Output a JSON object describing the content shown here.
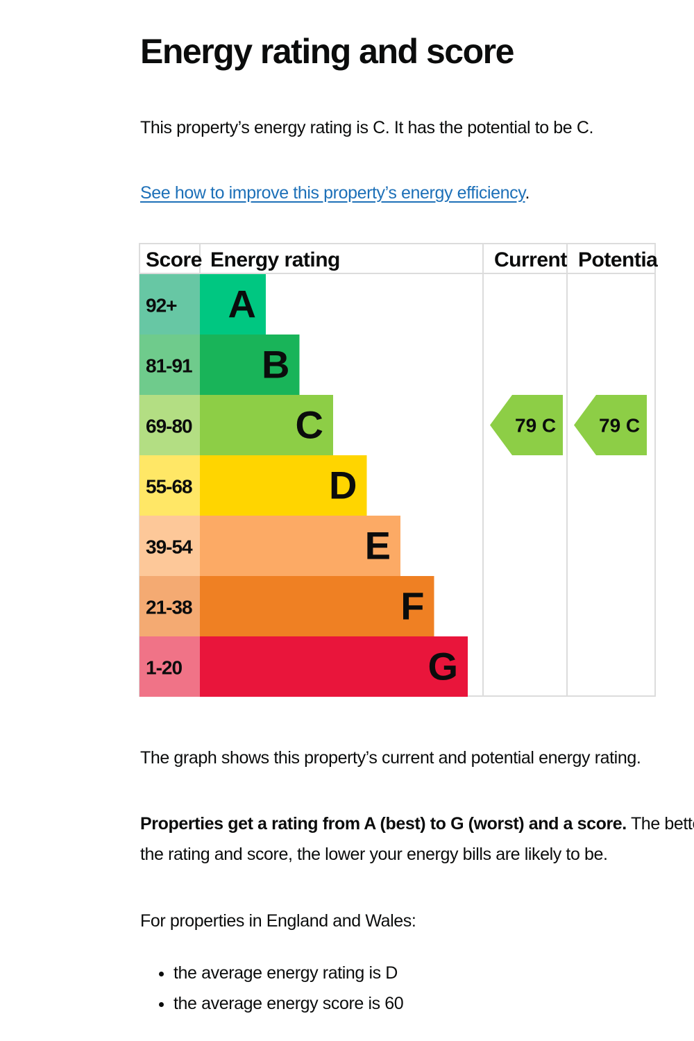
{
  "heading": "Energy rating and score",
  "summary": "This property’s energy rating is C. It has the potential to be C.",
  "improve_link": "See how to improve this property’s energy efficiency",
  "improve_link_suffix": ".",
  "chart_data": {
    "type": "bar",
    "columns": {
      "score": "Score",
      "rating": "Energy rating",
      "current": "Current",
      "potential": "Potential"
    },
    "bands": [
      {
        "letter": "A",
        "range": "92+",
        "color": "#00c781",
        "score_color": "#67c7a4"
      },
      {
        "letter": "B",
        "range": "81-91",
        "color": "#19b459",
        "score_color": "#6fcb8c"
      },
      {
        "letter": "C",
        "range": "69-80",
        "color": "#8dce46",
        "score_color": "#b3de83"
      },
      {
        "letter": "D",
        "range": "55-68",
        "color": "#ffd500",
        "score_color": "#ffe766"
      },
      {
        "letter": "E",
        "range": "39-54",
        "color": "#fcaa65",
        "score_color": "#fdc899"
      },
      {
        "letter": "F",
        "range": "21-38",
        "color": "#ef8023",
        "score_color": "#f4aa72"
      },
      {
        "letter": "G",
        "range": "1-20",
        "color": "#e9153b",
        "score_color": "#f07387"
      }
    ],
    "current": {
      "score": 79,
      "band": "C",
      "label": "79  C",
      "color": "#8dce46"
    },
    "potential": {
      "score": 79,
      "band": "C",
      "label": "79  C",
      "color": "#8dce46"
    }
  },
  "graph_caption": "The graph shows this property’s current and potential energy rating.",
  "ratings_bold": "Properties get a rating from A (best) to G (worst) and a score.",
  "ratings_rest_1": " The better",
  "ratings_rest_2": "the rating and score, the lower your energy bills are likely to be.",
  "averages_intro": "For properties in England and Wales:",
  "averages": [
    "the average energy rating is D",
    "the average energy score is 60"
  ]
}
